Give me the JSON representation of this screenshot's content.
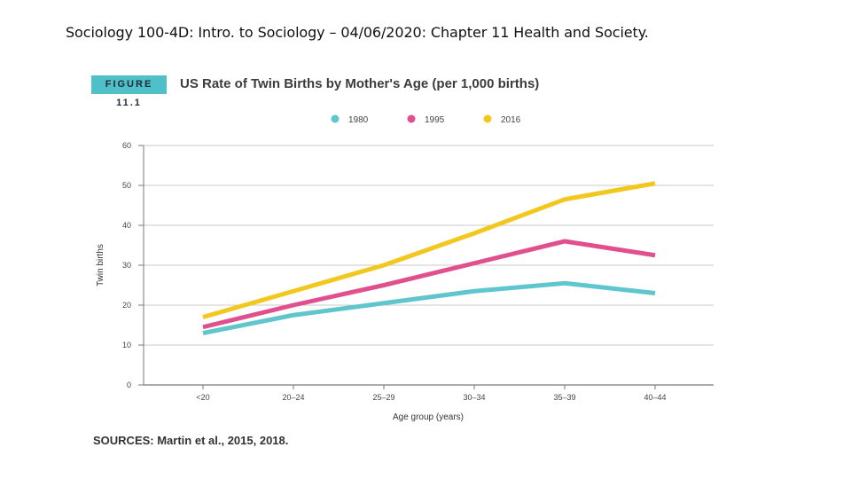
{
  "slide": {
    "title": "Sociology 100-4D: Intro. to Sociology – 04/06/2020: Chapter 11 Health and Society."
  },
  "figure": {
    "badge": "FIGURE 11.1",
    "title": "US Rate of Twin Births by Mother's Age (per 1,000 births)",
    "sources": "SOURCES: Martin et al., 2015, 2018."
  },
  "chart_data": {
    "type": "line",
    "title": "US Rate of Twin Births by Mother's Age (per 1,000 births)",
    "xlabel": "Age group (years)",
    "ylabel": "Twin births",
    "categories": [
      "<20",
      "20–24",
      "25–29",
      "30–34",
      "35–39",
      "40–44"
    ],
    "ylim": [
      0,
      60
    ],
    "yticks": [
      0,
      10,
      20,
      30,
      40,
      50,
      60
    ],
    "grid": true,
    "legend": "top-center",
    "series": [
      {
        "name": "1980",
        "color": "#5ec6cc",
        "values": [
          13,
          17.5,
          20.5,
          23.5,
          25.5,
          23
        ]
      },
      {
        "name": "1995",
        "color": "#e0508e",
        "values": [
          14.5,
          20,
          25,
          30.5,
          36,
          32.5
        ]
      },
      {
        "name": "2016",
        "color": "#f2c81e",
        "values": [
          17,
          23.5,
          30,
          38,
          46.5,
          50.5
        ]
      }
    ]
  }
}
